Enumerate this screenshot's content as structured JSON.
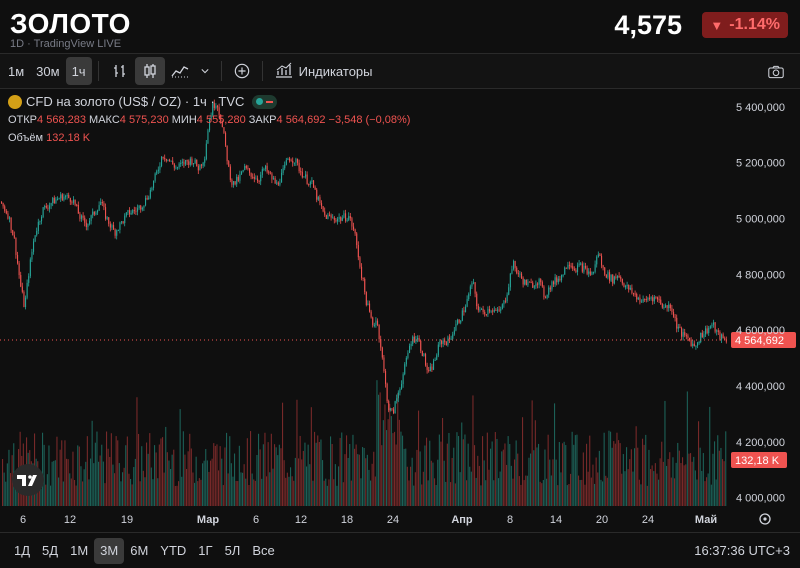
{
  "header": {
    "title": "ЗОЛОТО",
    "subtitle": "1D · TradingView LIVE",
    "price": "4,575",
    "change": "-1.14%",
    "change_arrow": "▼"
  },
  "toolbar": {
    "intervals": [
      "1м",
      "30м",
      "1ч"
    ],
    "active_interval": "1ч",
    "indicators_label": "Индикаторы"
  },
  "legend": {
    "symbol": "CFD на золото (US$ / OZ) · 1ч · TVC",
    "open_label": "ОТКР",
    "open_value": "4 568,283",
    "high_label": "МАКС",
    "high_value": "4 575,230",
    "low_label": "МИН",
    "low_value": "4 555,280",
    "close_label": "ЗАКР",
    "close_value": "4 564,692",
    "change_value": "−3,548 (−0,08%)",
    "volume_label": "Объём",
    "volume_value": "132,18 K"
  },
  "chart_data": {
    "type": "candlestick",
    "y_axis_labels": [
      "5 400,000",
      "5 200,000",
      "5 000,000",
      "4 800,000",
      "4 600,000",
      "4 400,000",
      "4 200,000",
      "4 000,000"
    ],
    "y_ticks": [
      5400,
      5200,
      5000,
      4800,
      4600,
      4400,
      4200,
      4000
    ],
    "ylim": [
      3970,
      5460
    ],
    "x_tick_labels": [
      "6",
      "12",
      "19",
      "Мар",
      "6",
      "12",
      "18",
      "24",
      "Апр",
      "8",
      "14",
      "20",
      "24",
      "Май"
    ],
    "price_path": [
      [
        0,
        5060
      ],
      [
        8,
        5010
      ],
      [
        14,
        4920
      ],
      [
        20,
        4760
      ],
      [
        24,
        4680
      ],
      [
        28,
        4800
      ],
      [
        34,
        4940
      ],
      [
        42,
        5030
      ],
      [
        52,
        5060
      ],
      [
        62,
        5080
      ],
      [
        72,
        5070
      ],
      [
        80,
        5000
      ],
      [
        86,
        4980
      ],
      [
        92,
        5010
      ],
      [
        100,
        5060
      ],
      [
        106,
        5000
      ],
      [
        114,
        4950
      ],
      [
        120,
        4980
      ],
      [
        128,
        5020
      ],
      [
        136,
        5030
      ],
      [
        144,
        5060
      ],
      [
        150,
        5100
      ],
      [
        156,
        5160
      ],
      [
        162,
        5230
      ],
      [
        168,
        5210
      ],
      [
        176,
        5180
      ],
      [
        184,
        5200
      ],
      [
        192,
        5210
      ],
      [
        198,
        5180
      ],
      [
        204,
        5220
      ],
      [
        208,
        5340
      ],
      [
        212,
        5400
      ],
      [
        216,
        5420
      ],
      [
        220,
        5360
      ],
      [
        224,
        5280
      ],
      [
        228,
        5180
      ],
      [
        232,
        5120
      ],
      [
        238,
        5140
      ],
      [
        244,
        5180
      ],
      [
        250,
        5160
      ],
      [
        258,
        5140
      ],
      [
        264,
        5180
      ],
      [
        270,
        5150
      ],
      [
        276,
        5120
      ],
      [
        282,
        5160
      ],
      [
        288,
        5220
      ],
      [
        294,
        5210
      ],
      [
        300,
        5170
      ],
      [
        306,
        5140
      ],
      [
        312,
        5120
      ],
      [
        318,
        5060
      ],
      [
        324,
        5010
      ],
      [
        332,
        5000
      ],
      [
        340,
        5000
      ],
      [
        348,
        5010
      ],
      [
        354,
        4950
      ],
      [
        360,
        4820
      ],
      [
        366,
        4700
      ],
      [
        372,
        4620
      ],
      [
        376,
        4640
      ],
      [
        380,
        4550
      ],
      [
        384,
        4430
      ],
      [
        388,
        4320
      ],
      [
        392,
        4300
      ],
      [
        398,
        4380
      ],
      [
        404,
        4460
      ],
      [
        410,
        4560
      ],
      [
        416,
        4580
      ],
      [
        422,
        4520
      ],
      [
        428,
        4440
      ],
      [
        434,
        4490
      ],
      [
        440,
        4560
      ],
      [
        448,
        4560
      ],
      [
        456,
        4620
      ],
      [
        462,
        4660
      ],
      [
        468,
        4720
      ],
      [
        472,
        4780
      ],
      [
        476,
        4690
      ],
      [
        482,
        4660
      ],
      [
        490,
        4680
      ],
      [
        498,
        4660
      ],
      [
        504,
        4700
      ],
      [
        508,
        4760
      ],
      [
        512,
        4840
      ],
      [
        518,
        4800
      ],
      [
        524,
        4770
      ],
      [
        530,
        4760
      ],
      [
        538,
        4780
      ],
      [
        544,
        4720
      ],
      [
        550,
        4760
      ],
      [
        556,
        4780
      ],
      [
        562,
        4800
      ],
      [
        568,
        4850
      ],
      [
        574,
        4820
      ],
      [
        580,
        4830
      ],
      [
        586,
        4810
      ],
      [
        592,
        4800
      ],
      [
        598,
        4880
      ],
      [
        602,
        4820
      ],
      [
        606,
        4800
      ],
      [
        612,
        4780
      ],
      [
        618,
        4800
      ],
      [
        624,
        4760
      ],
      [
        630,
        4740
      ],
      [
        636,
        4720
      ],
      [
        642,
        4700
      ],
      [
        650,
        4720
      ],
      [
        658,
        4710
      ],
      [
        664,
        4680
      ],
      [
        670,
        4690
      ],
      [
        676,
        4620
      ],
      [
        682,
        4580
      ],
      [
        688,
        4570
      ],
      [
        694,
        4540
      ],
      [
        700,
        4580
      ],
      [
        706,
        4600
      ],
      [
        712,
        4620
      ],
      [
        718,
        4580
      ],
      [
        724,
        4565
      ]
    ],
    "last_price": 4564.692,
    "last_price_label": "4 564,692",
    "volume_label": "132,18 K"
  },
  "bottom": {
    "ranges": [
      "1Д",
      "5Д",
      "1М",
      "3М",
      "6М",
      "YTD",
      "1Г",
      "5Л",
      "Все"
    ],
    "active_range": "3М",
    "clock": "16:37:36 UTC+3"
  },
  "colors": {
    "up": "#26a69a",
    "down": "#ef5350",
    "background": "#0f0f0f",
    "badge_bg": "#7f1d1d"
  },
  "icons": [
    "candles-icon",
    "bar-chart-icon",
    "area-chart-icon",
    "plus-circle-icon",
    "indicators-icon",
    "camera-icon",
    "tradingview-logo",
    "settings-icon"
  ]
}
